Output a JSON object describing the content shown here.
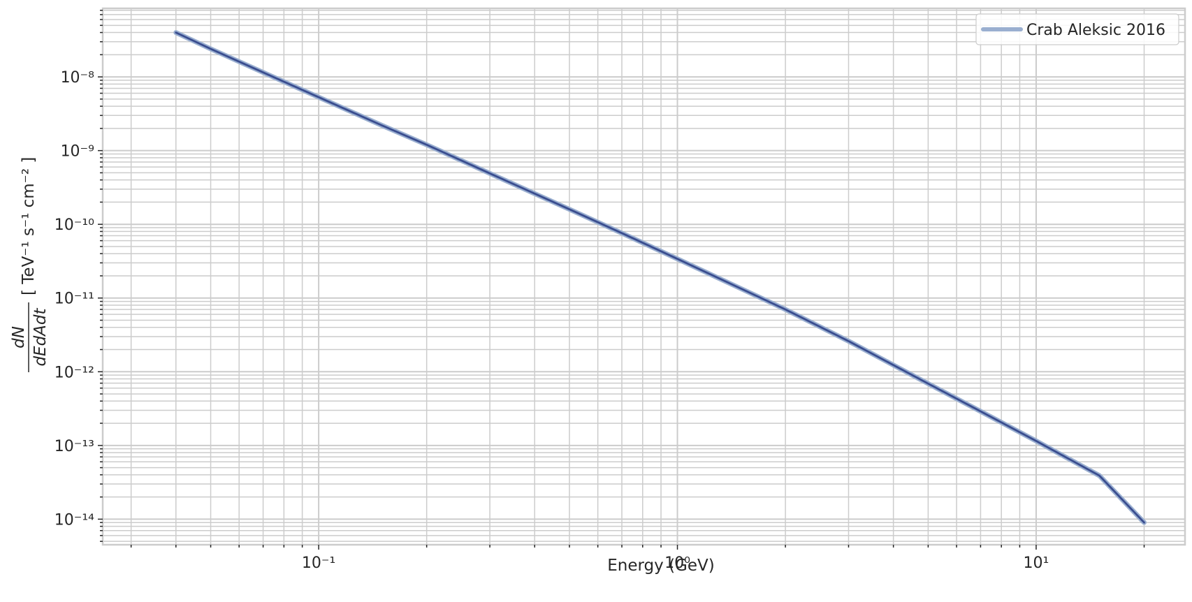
{
  "chart_data": {
    "type": "line",
    "title": "",
    "xlabel": "Energy (GeV)",
    "ylabel": "dN/dEdAdt [ TeV⁻¹ s⁻¹ cm⁻² ]",
    "ylabel_frac_num": "dN",
    "ylabel_frac_den": "dEdAdt",
    "ylabel_units": "[ TeV⁻¹ s⁻¹ cm⁻² ]",
    "x_scale": "log",
    "y_scale": "log",
    "xlim": [
      0.025,
      26
    ],
    "ylim": [
      4.5e-15,
      8.5e-08
    ],
    "x_ticks": [
      {
        "value": 0.1,
        "label": "10⁻¹"
      },
      {
        "value": 1,
        "label": "10⁰"
      },
      {
        "value": 10,
        "label": "10¹"
      }
    ],
    "y_ticks": [
      {
        "value": 1e-08,
        "label": "10⁻⁸"
      },
      {
        "value": 1e-09,
        "label": "10⁻⁹"
      },
      {
        "value": 1e-10,
        "label": "10⁻¹⁰"
      },
      {
        "value": 1e-11,
        "label": "10⁻¹¹"
      },
      {
        "value": 1e-12,
        "label": "10⁻¹²"
      },
      {
        "value": 1e-13,
        "label": "10⁻¹³"
      },
      {
        "value": 1e-14,
        "label": "10⁻¹⁴"
      }
    ],
    "grid": true,
    "legend_position": "top-right",
    "series": [
      {
        "name": "Crab Aleksic 2016",
        "color": "#4c72b0",
        "x": [
          0.04,
          0.05,
          0.07,
          0.1,
          0.15,
          0.2,
          0.3,
          0.5,
          0.7,
          1,
          1.5,
          2,
          3,
          5,
          7,
          10,
          15,
          20
        ],
        "y": [
          4e-08,
          2.4e-08,
          1.15e-08,
          5.3e-09,
          2.2e-09,
          1.2e-09,
          4.9e-10,
          1.6e-10,
          7.6e-11,
          3.4e-11,
          1.35e-11,
          7e-12,
          2.6e-12,
          6.9e-13,
          2.9e-13,
          1.15e-13,
          3.9e-14,
          9e-15
        ]
      }
    ]
  },
  "colors": {
    "grid": "#cccccc",
    "axes_edge": "#cccccc",
    "line_dark": "#3a4d8f",
    "line_halo": "#9aafd0",
    "text": "#262626"
  }
}
